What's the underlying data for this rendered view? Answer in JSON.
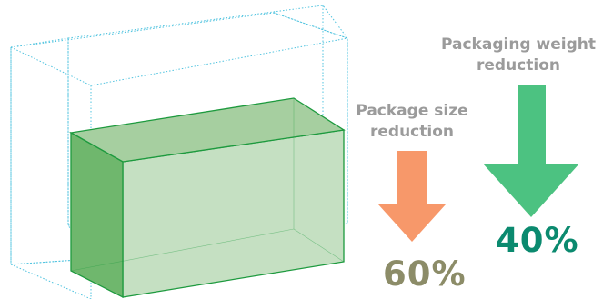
{
  "size_reduction": {
    "label_line1": "Package size",
    "label_line2": "reduction",
    "value": "60%"
  },
  "weight_reduction": {
    "label_line1": "Packaging weight",
    "label_line2": "reduction",
    "value": "40%"
  },
  "colors": {
    "label_gray": "#9b9b9b",
    "size_arrow": "#f7986a",
    "size_value": "#8c8c68",
    "weight_arrow": "#4cc281",
    "weight_value": "#0b8a6f",
    "box_front": "#c5e0c2",
    "box_side": "#6fb76d",
    "box_top": "#a6cfa0",
    "box_stroke": "#1d9a3e",
    "outline_box": "#4fc3df"
  }
}
